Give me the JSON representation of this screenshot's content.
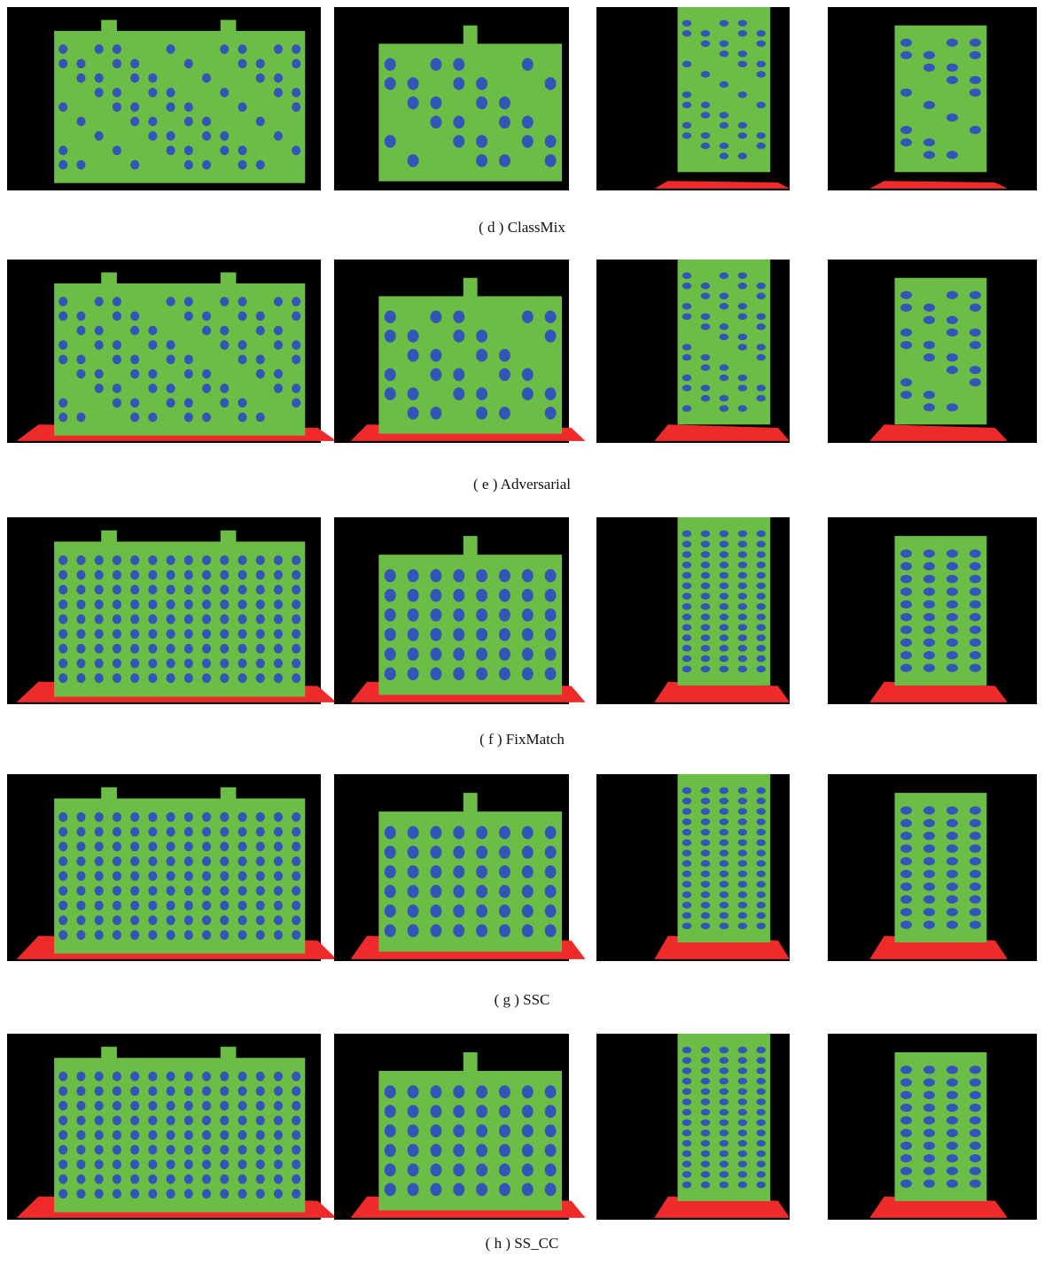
{
  "figure": {
    "captions": [
      "( d ) ClassMix",
      "( e ) Adversarial",
      "( f ) FixMatch",
      "( g ) SSC",
      "( h ) SS_CC"
    ]
  }
}
